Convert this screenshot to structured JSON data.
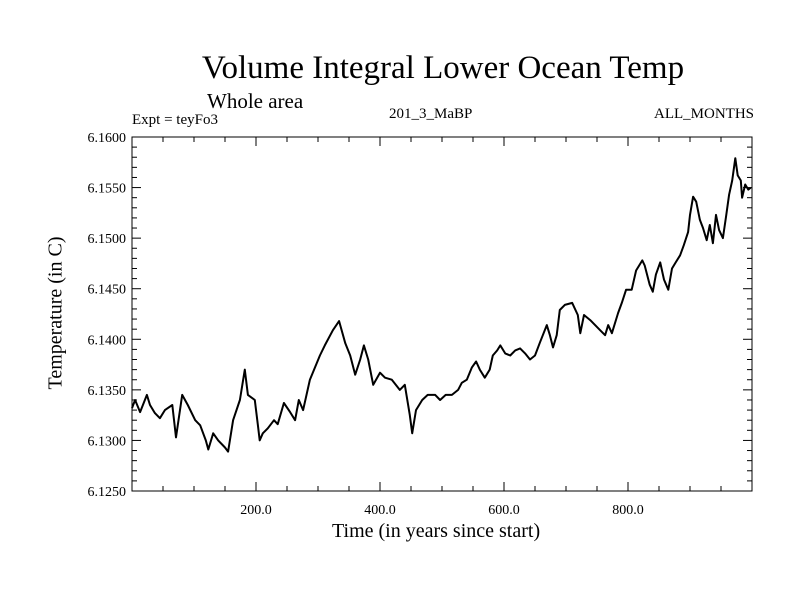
{
  "chart_data": {
    "type": "line",
    "title": "Volume Integral Lower Ocean Temp",
    "subtitle": "Whole area",
    "annotations": {
      "experiment": "Expt = teyFo3",
      "period": "201_3_MaBP",
      "months": "ALL_MONTHS"
    },
    "xlabel": "Time (in years since start)",
    "ylabel": "Temperature (in C)",
    "xlim": [
      0,
      1000
    ],
    "ylim": [
      6.125,
      6.16
    ],
    "x_tick_labels": [
      "200.0",
      "400.0",
      "600.0",
      "800.0"
    ],
    "x_tick_values": [
      200,
      400,
      600,
      800
    ],
    "x_minor_step": 50,
    "y_tick_labels": [
      "6.1250",
      "6.1300",
      "6.1350",
      "6.1400",
      "6.1450",
      "6.1500",
      "6.1550",
      "6.1600"
    ],
    "y_tick_values": [
      6.125,
      6.13,
      6.135,
      6.14,
      6.145,
      6.15,
      6.155,
      6.16
    ],
    "y_minor_step": 0.001,
    "grid": false,
    "legend": "none",
    "series": [
      {
        "name": "Volume Integral Lower Ocean Temp",
        "color": "#000000",
        "x": [
          0,
          5,
          13,
          24,
          29,
          37,
          45,
          53,
          65,
          71,
          81,
          90,
          102,
          110,
          119,
          123,
          131,
          139,
          150,
          155,
          163,
          174,
          182,
          187,
          198,
          203,
          206,
          211,
          219,
          229,
          235,
          245,
          255,
          263,
          269,
          276,
          287,
          295,
          303,
          311,
          324,
          334,
          344,
          352,
          360,
          368,
          374,
          381,
          389,
          400,
          408,
          419,
          432,
          440,
          448,
          452,
          458,
          468,
          477,
          489,
          497,
          506,
          516,
          526,
          532,
          540,
          548,
          555,
          561,
          569,
          577,
          582,
          589,
          594,
          602,
          610,
          618,
          626,
          634,
          642,
          650,
          658,
          669,
          674,
          679,
          685,
          690,
          698,
          710,
          719,
          723,
          729,
          739,
          747,
          755,
          763,
          768,
          774,
          784,
          790,
          797,
          806,
          813,
          823,
          827,
          835,
          840,
          845,
          852,
          858,
          865,
          871,
          877,
          884,
          890,
          897,
          900,
          905,
          910,
          916,
          921,
          927,
          932,
          937,
          942,
          947,
          953,
          958,
          963,
          968,
          973,
          977,
          982,
          984,
          989,
          994,
          998
        ],
        "y": [
          6.1332,
          6.134,
          6.1328,
          6.1345,
          6.1335,
          6.1327,
          6.1322,
          6.133,
          6.1335,
          6.1303,
          6.1345,
          6.1335,
          6.132,
          6.1315,
          6.13,
          6.1291,
          6.1307,
          6.13,
          6.1293,
          6.1289,
          6.132,
          6.134,
          6.137,
          6.1345,
          6.134,
          6.1315,
          6.13,
          6.1307,
          6.1312,
          6.132,
          6.1316,
          6.1337,
          6.1328,
          6.132,
          6.134,
          6.133,
          6.136,
          6.1372,
          6.1384,
          6.1394,
          6.1409,
          6.1418,
          6.1396,
          6.1384,
          6.1365,
          6.138,
          6.1394,
          6.138,
          6.1355,
          6.1367,
          6.1362,
          6.136,
          6.135,
          6.1355,
          6.1325,
          6.1307,
          6.133,
          6.134,
          6.1345,
          6.1345,
          6.134,
          6.1345,
          6.1345,
          6.135,
          6.1357,
          6.136,
          6.1372,
          6.1378,
          6.137,
          6.1362,
          6.137,
          6.1384,
          6.1389,
          6.1394,
          6.1386,
          6.1384,
          6.1389,
          6.1391,
          6.1386,
          6.138,
          6.1384,
          6.1397,
          6.1414,
          6.1404,
          6.1392,
          6.1404,
          6.1429,
          6.1434,
          6.1436,
          6.1424,
          6.1406,
          6.1424,
          6.1419,
          6.1414,
          6.1409,
          6.1404,
          6.1414,
          6.1406,
          6.1426,
          6.1436,
          6.1449,
          6.1449,
          6.1468,
          6.1478,
          6.1473,
          6.1454,
          6.1447,
          6.1464,
          6.1476,
          6.1459,
          6.1449,
          6.147,
          6.1476,
          6.1483,
          6.1493,
          6.1506,
          6.1523,
          6.1541,
          6.1536,
          6.1518,
          6.151,
          6.1498,
          6.1513,
          6.1495,
          6.1523,
          6.1508,
          6.15,
          6.1521,
          6.1543,
          6.1557,
          6.1579,
          6.1562,
          6.1557,
          6.154,
          6.1553,
          6.1548,
          6.155
        ]
      }
    ]
  }
}
